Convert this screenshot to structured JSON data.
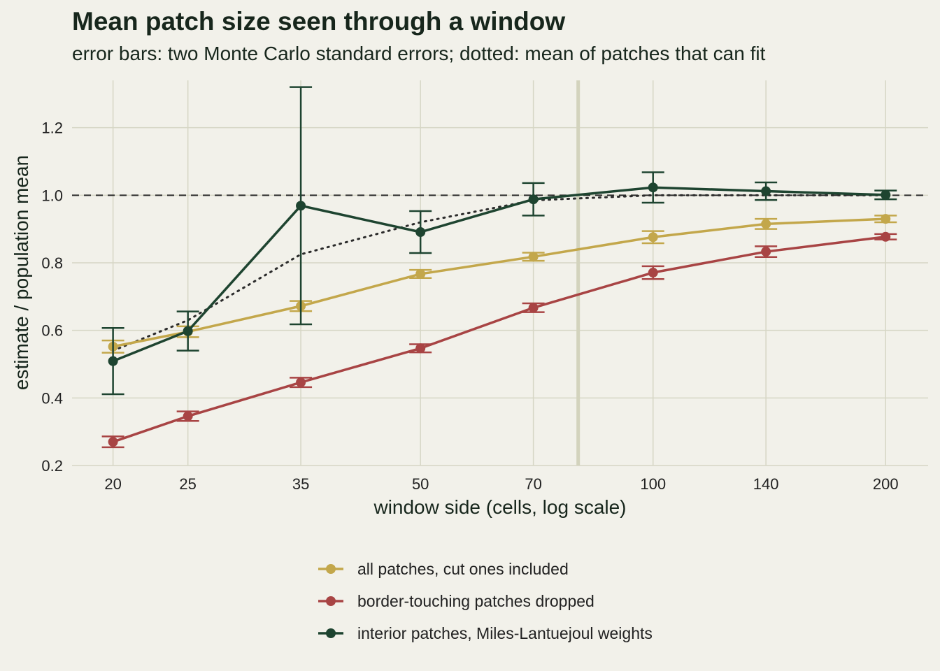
{
  "chart_data": {
    "type": "line",
    "title": "Mean patch size seen through a window",
    "subtitle": "error bars: two Monte Carlo standard errors; dotted: mean of patches that can fit",
    "xlabel": "window side (cells, log scale)",
    "ylabel": "estimate / population mean",
    "x_scale": "log",
    "xlim": [
      17.7,
      227
    ],
    "ylim": [
      0.2,
      1.34
    ],
    "x": [
      20,
      25,
      35,
      50,
      70,
      100,
      140,
      200
    ],
    "x_tick_labels": [
      "20",
      "25",
      "35",
      "50",
      "70",
      "100",
      "140",
      "200"
    ],
    "y_ticks": [
      0.2,
      0.4,
      0.6,
      0.8,
      1.0,
      1.2
    ],
    "y_tick_labels": [
      "0.2",
      "0.4",
      "0.6",
      "0.8",
      "1.0",
      "1.2"
    ],
    "reference_line_y": 1.0,
    "highlight_x": 80,
    "series": [
      {
        "name": "all patches, cut ones included",
        "color": "#c3a74b",
        "values": [
          0.552,
          0.596,
          0.672,
          0.767,
          0.818,
          0.876,
          0.915,
          0.93
        ],
        "err": [
          0.018,
          0.016,
          0.015,
          0.012,
          0.012,
          0.018,
          0.015,
          0.01
        ]
      },
      {
        "name": "border-touching patches dropped",
        "color": "#a84444",
        "values": [
          0.27,
          0.346,
          0.446,
          0.547,
          0.667,
          0.771,
          0.833,
          0.877
        ],
        "err": [
          0.016,
          0.014,
          0.014,
          0.012,
          0.013,
          0.019,
          0.016,
          0.008
        ]
      },
      {
        "name": "interior patches, Miles-Lantuejoul weights",
        "color": "#1e4430",
        "values": [
          0.509,
          0.598,
          0.969,
          0.891,
          0.988,
          1.023,
          1.012,
          1.001
        ],
        "err": [
          0.098,
          0.058,
          0.351,
          0.062,
          0.048,
          0.045,
          0.026,
          0.013
        ]
      }
    ],
    "dotted_curve": {
      "x": [
        20,
        25,
        35,
        50,
        70,
        100,
        140,
        200
      ],
      "values": [
        0.54,
        0.63,
        0.825,
        0.92,
        0.985,
        1.0,
        1.0,
        1.0
      ]
    },
    "grid": true,
    "legend_position": "bottom"
  }
}
